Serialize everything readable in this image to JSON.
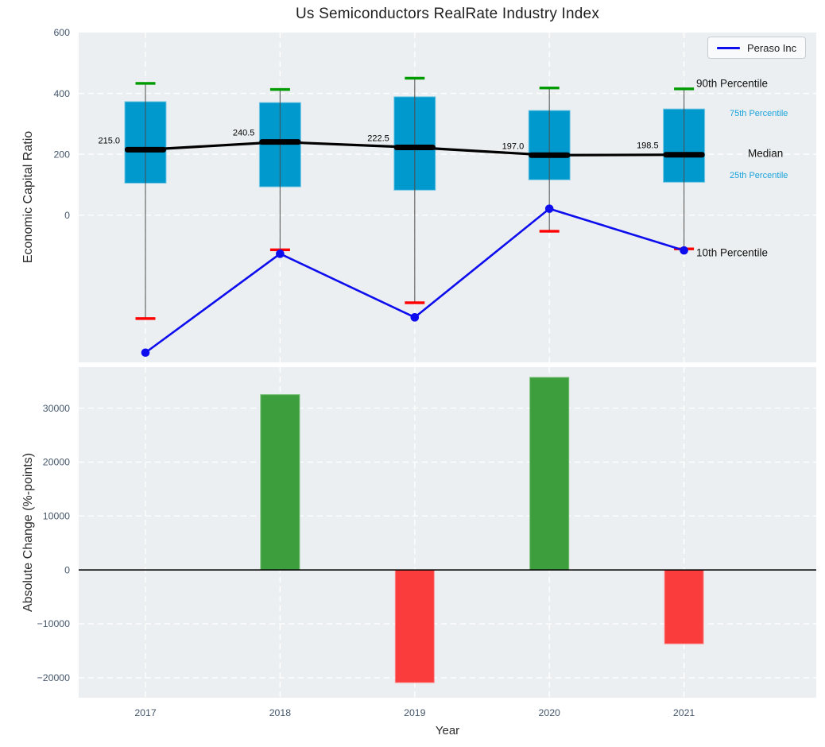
{
  "title": "Us Semiconductors RealRate Industry Index",
  "colors": {
    "axes_bg": "#eceff1",
    "grid": "#ffffff",
    "box_fill": "#0099cd",
    "box_edge": "#79c8e6",
    "whisker": "#4d4d4d",
    "cap_high": "#009b00",
    "cap_low": "#ff0000",
    "median": "#000000",
    "series_line": "#0d0dee",
    "bar_pos": "#3c9e3c",
    "bar_pos_edge": "#74bf74",
    "bar_neg": "#fa3c3c",
    "bar_neg_edge": "#fc9090",
    "tick": "#44566b",
    "median_label": "#000000",
    "zero_line": "#000000"
  },
  "chart_data": [
    {
      "type": "boxplot+line",
      "title": "Us Semiconductors RealRate Industry Index",
      "ylabel": "Economic Capital Ratio",
      "categories": [
        "2017",
        "2018",
        "2019",
        "2020",
        "2021"
      ],
      "ylim": [
        -484,
        600
      ],
      "grid": true,
      "yticks": [
        {
          "value": 600,
          "label": "600"
        },
        {
          "value": 400,
          "label": "400"
        },
        {
          "value": 200,
          "label": "200"
        },
        {
          "value": 0,
          "label": "0"
        }
      ],
      "boxes": [
        {
          "year": "2017",
          "p10": -340,
          "p25": 105,
          "median": 215.0,
          "p75": 373,
          "p90": 433,
          "median_label": "215.0"
        },
        {
          "year": "2018",
          "p10": -114,
          "p25": 93,
          "median": 240.5,
          "p75": 370,
          "p90": 413,
          "median_label": "240.5"
        },
        {
          "year": "2019",
          "p10": -288,
          "p25": 82,
          "median": 222.5,
          "p75": 389,
          "p90": 450,
          "median_label": "222.5"
        },
        {
          "year": "2020",
          "p10": -53,
          "p25": 116,
          "median": 197.0,
          "p75": 344,
          "p90": 418,
          "median_label": "197.0"
        },
        {
          "year": "2021",
          "p10": -111,
          "p25": 108,
          "median": 198.5,
          "p75": 349,
          "p90": 415,
          "median_label": "198.5"
        }
      ],
      "series": [
        {
          "name": "Peraso Inc",
          "color": "#0d0dee",
          "values": [
            -452,
            -127,
            -336,
            21,
            -116
          ]
        }
      ],
      "legend_position": "upper right",
      "percentile_labels": {
        "p90": "90th Percentile",
        "p75": "75th Percentile",
        "median": "Median",
        "p25": "25th Percentile",
        "p10": "10th Percentile"
      }
    },
    {
      "type": "bar",
      "ylabel": "Absolute Change (%-points)",
      "xlabel": "Year",
      "categories": [
        "2017",
        "2018",
        "2019",
        "2020",
        "2021"
      ],
      "values": [
        0,
        32500,
        -20900,
        35700,
        -13700
      ],
      "ylim": [
        -23700,
        37600
      ],
      "grid": true,
      "zero_line": true,
      "yticks": [
        {
          "value": 30000,
          "label": "30000"
        },
        {
          "value": 20000,
          "label": "20000"
        },
        {
          "value": 10000,
          "label": "10000"
        },
        {
          "value": 0,
          "label": "0"
        },
        {
          "value": -10000,
          "label": "−10000"
        },
        {
          "value": -20000,
          "label": "−20000"
        }
      ]
    }
  ]
}
